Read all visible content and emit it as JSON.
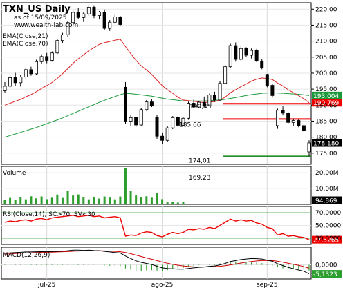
{
  "chart_data": {
    "type": "candlestick",
    "symbol_title": "TXN_US Daily",
    "as_of": "as of 15/09/2025",
    "watermark": "www.wealth-lab.com",
    "indicators": [
      "EMA(Close,21)",
      "EMA(Close,70)"
    ],
    "x_tick_labels": [
      {
        "label": "jul-25",
        "index": 8
      },
      {
        "label": "ago-25",
        "index": 30
      },
      {
        "label": "sep-25",
        "index": 50
      }
    ],
    "price_axis": {
      "ylim": [
        171.5,
        222
      ],
      "ticks": [
        175,
        180,
        185,
        190,
        195,
        200,
        205,
        210,
        215,
        220
      ],
      "tick_labels": [
        "175,00",
        "180,00",
        "185,00",
        "190,00",
        "195,00",
        "200,00",
        "205,00",
        "210,00",
        "215,00",
        "220,00"
      ]
    },
    "level_labels": [
      {
        "text": "190,45",
        "price": 190.45
      },
      {
        "text": "185,66",
        "price": 185.66
      },
      {
        "text": "174,01",
        "price": 174.01
      },
      {
        "text": "169,23",
        "price": 169.23
      }
    ],
    "horizontal_lines": [
      {
        "price": 190.45,
        "from_index": 42,
        "color": "#ee0000"
      },
      {
        "price": 185.66,
        "from_index": 42,
        "color": "#ee0000"
      },
      {
        "price": 174.01,
        "from_index": 42,
        "color": "#228b22"
      }
    ],
    "value_badges": [
      {
        "text": "193,004",
        "price": 193.004,
        "color": "#1a9a3a"
      },
      {
        "text": "190,769",
        "price": 190.769,
        "color": "#ee0000"
      },
      {
        "text": "178,180",
        "price": 178.18,
        "color": "#000000"
      }
    ],
    "candles": [
      [
        194.5,
        197.2,
        193.8,
        195.9
      ],
      [
        195.9,
        199.4,
        195.2,
        198.6
      ],
      [
        198.6,
        200.1,
        196.0,
        197.0
      ],
      [
        197.0,
        199.5,
        195.8,
        198.8
      ],
      [
        198.8,
        201.6,
        198.2,
        201.1
      ],
      [
        201.1,
        202.0,
        199.2,
        199.8
      ],
      [
        199.8,
        204.2,
        199.4,
        203.6
      ],
      [
        203.6,
        205.9,
        203.0,
        205.2
      ],
      [
        205.2,
        206.3,
        203.1,
        204.0
      ],
      [
        204.0,
        206.8,
        203.6,
        206.3
      ],
      [
        206.3,
        210.7,
        206.0,
        210.2
      ],
      [
        210.2,
        212.6,
        209.4,
        212.0
      ],
      [
        212.0,
        216.3,
        211.2,
        215.8
      ],
      [
        215.8,
        219.6,
        215.2,
        219.0
      ],
      [
        219.0,
        220.5,
        216.8,
        217.4
      ],
      [
        217.4,
        219.1,
        216.0,
        218.5
      ],
      [
        218.5,
        221.4,
        217.9,
        220.6
      ],
      [
        220.6,
        221.2,
        217.2,
        218.0
      ],
      [
        218.0,
        219.4,
        216.8,
        219.1
      ],
      [
        219.1,
        219.9,
        213.4,
        214.0
      ],
      [
        214.0,
        216.6,
        213.2,
        215.9
      ],
      [
        215.9,
        218.3,
        215.4,
        217.6
      ],
      [
        217.6,
        217.9,
        214.8,
        215.2
      ],
      [
        195.6,
        197.2,
        184.1,
        185.0
      ],
      [
        185.0,
        186.8,
        183.4,
        186.1
      ],
      [
        186.1,
        186.4,
        183.2,
        183.8
      ],
      [
        183.8,
        189.1,
        183.6,
        188.6
      ],
      [
        188.6,
        191.6,
        188.2,
        191.0
      ],
      [
        191.0,
        191.9,
        189.4,
        189.8
      ],
      [
        186.3,
        186.9,
        179.5,
        180.3
      ],
      [
        180.3,
        181.4,
        177.8,
        179.0
      ],
      [
        179.0,
        183.4,
        178.6,
        182.9
      ],
      [
        182.9,
        186.6,
        182.5,
        186.1
      ],
      [
        186.1,
        186.6,
        183.2,
        183.7
      ],
      [
        183.7,
        186.4,
        183.4,
        185.9
      ],
      [
        185.9,
        191.1,
        185.4,
        190.6
      ],
      [
        190.6,
        191.7,
        189.0,
        189.4
      ],
      [
        189.4,
        191.3,
        189.1,
        190.9
      ],
      [
        190.9,
        192.7,
        189.3,
        189.8
      ],
      [
        189.8,
        193.6,
        189.6,
        193.2
      ],
      [
        193.2,
        194.2,
        191.0,
        191.6
      ],
      [
        191.6,
        197.4,
        191.3,
        196.8
      ],
      [
        196.8,
        202.6,
        196.5,
        202.0
      ],
      [
        202.0,
        209.2,
        201.7,
        208.6
      ],
      [
        208.6,
        209.6,
        203.6,
        204.3
      ],
      [
        204.3,
        208.4,
        203.9,
        207.7
      ],
      [
        207.7,
        208.1,
        205.0,
        205.6
      ],
      [
        205.6,
        207.7,
        204.6,
        207.1
      ],
      [
        207.1,
        207.6,
        203.4,
        203.8
      ],
      [
        203.8,
        204.4,
        201.2,
        201.7
      ],
      [
        199.6,
        199.8,
        195.6,
        196.2
      ],
      [
        196.2,
        196.6,
        192.4,
        193.0
      ],
      [
        183.6,
        188.9,
        182.6,
        188.4
      ],
      [
        188.4,
        189.6,
        186.8,
        187.5
      ],
      [
        187.5,
        187.9,
        184.1,
        184.6
      ],
      [
        184.6,
        185.8,
        183.4,
        185.2
      ],
      [
        185.2,
        185.6,
        183.1,
        183.6
      ],
      [
        183.6,
        184.0,
        181.6,
        182.1
      ],
      [
        175.4,
        179.0,
        174.0,
        178.2
      ]
    ],
    "ema21": [
      190.0,
      190.6,
      191.2,
      191.8,
      192.6,
      193.3,
      194.2,
      195.2,
      196.1,
      197.1,
      198.4,
      199.8,
      201.4,
      203.1,
      204.5,
      205.7,
      207.0,
      208.0,
      209.0,
      209.5,
      209.9,
      210.3,
      210.6,
      208.3,
      206.1,
      204.0,
      202.3,
      201.0,
      199.6,
      197.8,
      196.1,
      194.8,
      193.7,
      192.5,
      191.6,
      191.4,
      191.2,
      191.0,
      190.8,
      191.0,
      191.1,
      191.6,
      192.5,
      193.9,
      194.8,
      195.8,
      196.6,
      197.5,
      198.1,
      198.5,
      198.3,
      198.0,
      196.9,
      196.0,
      194.8,
      193.9,
      193.0,
      192.0,
      190.77
    ],
    "ema70": [
      180.0,
      180.5,
      181.0,
      181.5,
      182.0,
      182.5,
      183.0,
      183.6,
      184.2,
      184.8,
      185.4,
      186.0,
      186.7,
      187.4,
      188.1,
      188.8,
      189.5,
      190.2,
      190.9,
      191.5,
      192.1,
      192.7,
      193.3,
      193.7,
      193.6,
      193.4,
      193.2,
      193.0,
      192.8,
      192.5,
      192.2,
      191.9,
      191.7,
      191.5,
      191.3,
      191.3,
      191.3,
      191.3,
      191.3,
      191.4,
      191.5,
      191.6,
      191.8,
      192.1,
      192.4,
      192.7,
      193.0,
      193.3,
      193.5,
      193.7,
      193.8,
      193.9,
      193.8,
      193.7,
      193.6,
      193.5,
      193.4,
      193.2,
      193.0
    ],
    "volume": {
      "title": "Volume",
      "ylim": [
        0,
        24000000
      ],
      "ticks": [
        10000000,
        20000000
      ],
      "tick_labels": [
        "10,00M",
        "20,00M"
      ],
      "last_label": "94,869",
      "values": [
        3.0,
        4.1,
        2.6,
        4.4,
        3.2,
        5.1,
        3.8,
        5.0,
        3.3,
        4.2,
        6.2,
        4.1,
        8.4,
        5.6,
        6.3,
        4.4,
        3.2,
        4.6,
        3.7,
        5.0,
        4.3,
        3.2,
        5.0,
        23.0,
        8.5,
        5.6,
        4.4,
        5.1,
        4.2,
        7.4,
        3.3,
        1.5,
        1.7,
        1.1,
        1.3,
        0,
        0,
        0,
        0,
        0,
        0,
        0,
        0,
        0,
        0,
        0,
        0,
        0,
        0,
        0,
        0,
        0,
        0,
        0,
        0,
        0,
        0,
        0,
        0
      ]
    },
    "rsi": {
      "title": "RSI(Close,14), SC>70, SV<30",
      "ylim": [
        20,
        80
      ],
      "ticks": [
        30,
        50,
        70
      ],
      "tick_labels": [
        "30,0000",
        "50,0000",
        "70,0000"
      ],
      "last_label": "27,5265",
      "values": [
        55,
        57,
        56,
        58,
        59,
        57,
        60,
        61,
        59,
        62,
        63,
        64,
        65,
        66,
        64,
        65,
        66,
        64,
        65,
        62,
        63,
        64,
        62,
        33,
        35,
        34,
        38,
        40,
        39,
        34,
        32,
        36,
        39,
        37,
        39,
        44,
        43,
        45,
        44,
        47,
        45,
        50,
        55,
        60,
        57,
        59,
        57,
        58,
        54,
        52,
        47,
        45,
        35,
        37,
        33,
        34,
        32,
        31,
        27.5
      ]
    },
    "macd": {
      "title": "MACD(12,26,9)",
      "ylim": [
        -8,
        10
      ],
      "ticks": [
        0
      ],
      "tick_labels": [
        "0,0000"
      ],
      "last_label": "-5,1323",
      "macd": [
        6.5,
        6.8,
        7.0,
        7.1,
        7.3,
        7.3,
        7.4,
        7.5,
        7.4,
        7.5,
        7.6,
        7.7,
        8.0,
        8.3,
        8.3,
        8.2,
        8.3,
        8.1,
        8.0,
        7.6,
        7.3,
        7.0,
        6.7,
        5.0,
        3.6,
        2.3,
        1.4,
        0.8,
        0.2,
        -0.8,
        -1.7,
        -2.1,
        -2.2,
        -2.4,
        -2.4,
        -2.0,
        -1.7,
        -1.4,
        -1.2,
        -0.8,
        -0.6,
        0.0,
        0.8,
        1.9,
        2.4,
        3.0,
        3.3,
        3.6,
        3.5,
        3.3,
        2.7,
        2.0,
        0.6,
        -0.4,
        -1.4,
        -2.2,
        -2.9,
        -3.6,
        -5.1
      ],
      "signal": [
        6.0,
        6.2,
        6.4,
        6.6,
        6.7,
        6.8,
        7.0,
        7.1,
        7.1,
        7.2,
        7.3,
        7.4,
        7.5,
        7.7,
        7.8,
        7.9,
        8.0,
        8.0,
        8.0,
        7.9,
        7.8,
        7.6,
        7.4,
        7.0,
        6.3,
        5.5,
        4.7,
        3.9,
        3.2,
        2.4,
        1.6,
        0.9,
        0.3,
        -0.2,
        -0.6,
        -0.9,
        -1.1,
        -1.2,
        -1.2,
        -1.1,
        -1.0,
        -0.8,
        -0.5,
        0.0,
        0.5,
        1.0,
        1.5,
        1.9,
        2.2,
        2.4,
        2.5,
        2.4,
        2.0,
        1.5,
        0.9,
        0.3,
        -0.3,
        -1.0,
        -1.9
      ]
    }
  }
}
